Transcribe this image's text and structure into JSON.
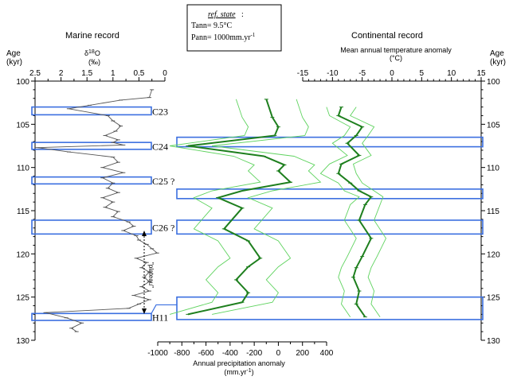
{
  "colors": {
    "band_stroke": "#3b6fe0",
    "dark_green": "#1e7f1e",
    "light_green": "#5fd35f",
    "isotope": "#555555"
  },
  "refbox": {
    "title": "ref. state",
    "colon": ":",
    "tann": "Tann= 9.5°C",
    "pann": "Pann= 1000mm.yr",
    "pann_exp": "-1"
  },
  "marine": {
    "title": "Marine record",
    "age_label_1": "Age",
    "age_label_2": "(kyr)",
    "d18o_label": "δ18O",
    "d18o_unit": "(‰)",
    "plateau_label": "\"plateau\""
  },
  "continental": {
    "title": "Continental record",
    "temp_label": "Mean annual temperature anomaly",
    "temp_unit": "(°C)",
    "age_label_1": "Age",
    "age_label_2": "(kyr)"
  },
  "precip": {
    "label": "Annual precipitation anomaly",
    "unit": "(mm.yr",
    "unit_exp": "-1",
    "unit_close": ")"
  },
  "chart_data": [
    {
      "type": "line",
      "name": "marine-isotope",
      "title": "Marine record",
      "xlabel": "δ18O (‰)",
      "ylabel": "Age (kyr)",
      "xlim": [
        2.5,
        0
      ],
      "ylim": [
        100,
        130
      ],
      "x_ticks": [
        2.5,
        2,
        1.5,
        1,
        0.5,
        0
      ],
      "x_tick_labels": [
        "2.5",
        "2",
        "1.5",
        "1",
        "0.5",
        "0"
      ],
      "y_ticks": [
        100,
        105,
        110,
        115,
        120,
        125,
        130
      ],
      "y_tick_labels": [
        "100",
        "105",
        "110",
        "115",
        "120",
        "125",
        "130"
      ],
      "series": [
        {
          "x": [
            0.25,
            0.3,
            0.85,
            1.45,
            1.85,
            1.1,
            1.0,
            0.85,
            0.95,
            1.15,
            0.9,
            1.0,
            0.8,
            2.45,
            1.85,
            1.0,
            0.9,
            1.2,
            0.8,
            1.2,
            1.0,
            1.1,
            0.9,
            1.2,
            1.0,
            1.15,
            0.9,
            1.0,
            0.7,
            0.6,
            0.8,
            0.55,
            0.5,
            0.35,
            0.25,
            0.15,
            0.55,
            0.35,
            0.45,
            0.3,
            0.4,
            0.3,
            0.45,
            0.3,
            0.6,
            0.3,
            0.5,
            0.7,
            2.3,
            1.9,
            1.6,
            1.8,
            1.7
          ],
          "y": [
            101.0,
            101.9,
            102.2,
            102.8,
            103.2,
            104.0,
            104.6,
            105.2,
            105.8,
            106.3,
            106.8,
            107.1,
            107.4,
            107.7,
            108.2,
            108.8,
            109.4,
            110.0,
            110.6,
            111.2,
            111.8,
            112.4,
            112.9,
            113.5,
            114.0,
            114.6,
            115.1,
            115.7,
            116.3,
            116.8,
            117.3,
            117.9,
            118.4,
            118.9,
            119.4,
            119.9,
            120.5,
            121.0,
            121.6,
            122.1,
            122.7,
            123.2,
            123.8,
            124.3,
            124.8,
            125.3,
            125.8,
            126.3,
            126.8,
            127.4,
            128.0,
            128.6,
            129.0
          ]
        }
      ]
    },
    {
      "type": "line",
      "name": "continental-temperature",
      "title": "Continental record",
      "xlabel": "Mean annual temperature anomaly (°C)",
      "ylabel": "Age (kyr)",
      "xlim": [
        -15,
        15
      ],
      "ylim": [
        100,
        130
      ],
      "x_ticks": [
        -15,
        -10,
        -5,
        0,
        5,
        10,
        15
      ],
      "x_tick_labels": [
        "-15",
        "-10",
        "-5",
        "0",
        "5",
        "10",
        "15"
      ],
      "y_ticks": [
        100,
        105,
        110,
        115,
        120,
        125,
        130
      ],
      "y_tick_labels": [
        "100",
        "105",
        "110",
        "115",
        "120",
        "125",
        "130"
      ],
      "series": [
        {
          "style": "mean",
          "x": [
            -8.5,
            -9.0,
            -5.0,
            -6.0,
            -7.5,
            -5.5,
            -8.5,
            -9.0,
            -7.0,
            -5.5,
            -3.5,
            -4.5,
            -5.5,
            -3.5,
            -5.0,
            -6.0,
            -6.5,
            -5.5,
            -6.0,
            -4.5
          ],
          "y": [
            103.0,
            104.0,
            105.3,
            106.3,
            107.2,
            108.6,
            109.6,
            110.7,
            111.8,
            112.7,
            113.4,
            114.3,
            116.1,
            118.2,
            120.3,
            121.6,
            122.7,
            124.3,
            125.8,
            127.3
          ]
        },
        {
          "style": "min",
          "x": [
            -11.0,
            -10.5,
            -7.0,
            -8.0,
            -10.0,
            -7.5,
            -10.5,
            -12.0,
            -9.0,
            -8.0,
            -5.5,
            -7.0,
            -8.0,
            -6.0,
            -7.5,
            -8.5,
            -9.0,
            -8.0,
            -8.5,
            -7.0
          ],
          "y": [
            103.0,
            104.0,
            105.3,
            106.3,
            107.2,
            108.6,
            109.6,
            110.7,
            111.8,
            112.7,
            113.4,
            114.3,
            116.1,
            118.2,
            120.3,
            121.6,
            122.7,
            124.3,
            125.8,
            127.3
          ]
        },
        {
          "style": "max",
          "x": [
            -6.0,
            -7.0,
            -3.0,
            -4.0,
            -5.0,
            -3.5,
            -6.5,
            -6.0,
            -5.0,
            -3.0,
            -1.5,
            -2.0,
            -3.0,
            -1.0,
            -2.5,
            -3.5,
            -4.0,
            -3.0,
            -3.5,
            -2.0
          ],
          "y": [
            103.0,
            104.0,
            105.3,
            106.3,
            107.2,
            108.6,
            109.6,
            110.7,
            111.8,
            112.7,
            113.4,
            114.3,
            116.1,
            118.2,
            120.3,
            121.6,
            122.7,
            124.3,
            125.8,
            127.3
          ]
        }
      ]
    },
    {
      "type": "line",
      "name": "continental-precipitation",
      "title": "",
      "xlabel": "Annual precipitation anomaly (mm.yr-1)",
      "ylabel": "Age (kyr)",
      "xlim": [
        -1000,
        400
      ],
      "ylim": [
        100,
        130
      ],
      "x_ticks": [
        -1000,
        -800,
        -600,
        -400,
        -200,
        0,
        200,
        400
      ],
      "x_tick_labels": [
        "-1000",
        "-800",
        "-600",
        "-400",
        "-200",
        "0",
        "200",
        "400"
      ],
      "series": [
        {
          "style": "mean",
          "x": [
            -100,
            -50,
            0,
            -30,
            -750,
            -120,
            50,
            0,
            100,
            -300,
            -500,
            -300,
            -450,
            -250,
            -150,
            -250,
            -350,
            -250,
            -300,
            -750
          ],
          "y": [
            102.1,
            104.2,
            105.3,
            106.3,
            107.5,
            108.7,
            109.7,
            110.4,
            111.7,
            112.7,
            113.5,
            114.7,
            117.1,
            118.5,
            120.5,
            121.5,
            123.0,
            124.5,
            125.6,
            127.0
          ]
        },
        {
          "style": "min",
          "x": [
            -350,
            -300,
            -250,
            -280,
            -900,
            -370,
            -200,
            -250,
            -150,
            -550,
            -700,
            -550,
            -700,
            -500,
            -400,
            -500,
            -600,
            -500,
            -550,
            -900
          ],
          "y": [
            102.1,
            104.2,
            105.3,
            106.3,
            107.5,
            108.7,
            109.7,
            110.4,
            111.7,
            112.7,
            113.5,
            114.7,
            117.1,
            118.5,
            120.5,
            121.5,
            123.0,
            124.5,
            125.6,
            127.0
          ]
        },
        {
          "style": "max",
          "x": [
            150,
            200,
            250,
            220,
            -550,
            130,
            300,
            250,
            350,
            -50,
            -250,
            -50,
            -200,
            0,
            100,
            0,
            -100,
            0,
            -50,
            -550
          ],
          "y": [
            102.1,
            104.2,
            105.3,
            106.3,
            107.5,
            108.7,
            109.7,
            110.4,
            111.7,
            112.7,
            113.5,
            114.7,
            117.1,
            118.5,
            120.5,
            121.5,
            123.0,
            124.5,
            125.6,
            127.0
          ]
        }
      ]
    },
    {
      "type": "bands",
      "name": "events",
      "items": [
        {
          "label": "C23",
          "from": 103.0,
          "to": 103.9,
          "wide": false
        },
        {
          "label": "C24",
          "from": 107.1,
          "to": 107.9,
          "wide": false
        },
        {
          "label": "C25 ?",
          "from": 111.1,
          "to": 111.9,
          "wide": false
        },
        {
          "label": "C26 ?",
          "from": 116.1,
          "to": 117.7,
          "wide": false
        },
        {
          "label": "H11",
          "from": 126.9,
          "to": 127.7,
          "wide": false
        },
        {
          "label": "",
          "from": 106.5,
          "to": 107.6,
          "wide": true
        },
        {
          "label": "",
          "from": 112.5,
          "to": 113.6,
          "wide": true
        },
        {
          "label": "",
          "from": 116.1,
          "to": 117.7,
          "wide": true
        },
        {
          "label": "",
          "from": 125.0,
          "to": 127.6,
          "wide": true
        }
      ]
    }
  ]
}
